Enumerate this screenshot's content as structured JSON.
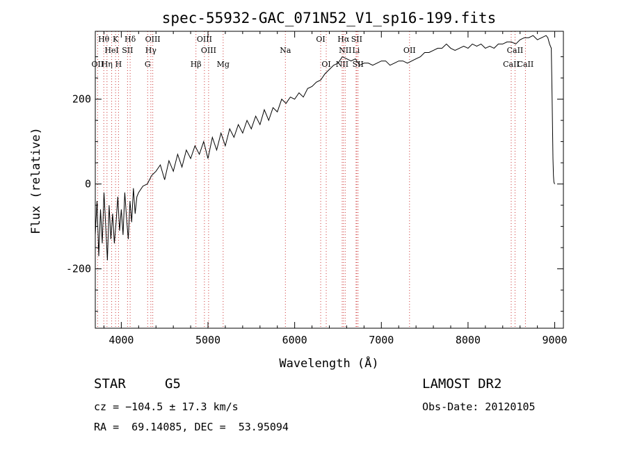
{
  "chart_data": {
    "type": "line",
    "title": "spec-55932-GAC_071N52_V1_sp16-199.fits",
    "xlabel": "Wavelength (Å)",
    "ylabel": "Flux (relative)",
    "xlim": [
      3700,
      9100
    ],
    "ylim": [
      -340,
      360
    ],
    "xticks": [
      4000,
      5000,
      6000,
      7000,
      8000,
      9000
    ],
    "yticks": [
      -200,
      0,
      200
    ],
    "grid": false,
    "line_color": "#000000",
    "marker_color": "#cc3333",
    "series": [
      {
        "x": [
          3700,
          3720,
          3740,
          3760,
          3780,
          3800,
          3820,
          3840,
          3860,
          3880,
          3900,
          3920,
          3940,
          3960,
          3980,
          4000,
          4020,
          4040,
          4060,
          4080,
          4100,
          4120,
          4140,
          4160,
          4180,
          4200,
          4250,
          4300,
          4350,
          4400,
          4450,
          4500,
          4550,
          4600,
          4650,
          4700,
          4750,
          4800,
          4850,
          4900,
          4950,
          5000,
          5050,
          5100,
          5150,
          5200,
          5250,
          5300,
          5350,
          5400,
          5450,
          5500,
          5550,
          5600,
          5650,
          5700,
          5750,
          5800,
          5850,
          5900,
          5950,
          6000,
          6050,
          6100,
          6150,
          6200,
          6250,
          6300,
          6350,
          6400,
          6450,
          6500,
          6550,
          6600,
          6650,
          6700,
          6750,
          6800,
          6850,
          6900,
          6950,
          7000,
          7050,
          7100,
          7150,
          7200,
          7250,
          7300,
          7350,
          7400,
          7450,
          7500,
          7550,
          7600,
          7650,
          7700,
          7750,
          7800,
          7850,
          7900,
          7950,
          8000,
          8050,
          8100,
          8150,
          8200,
          8250,
          8300,
          8350,
          8400,
          8450,
          8500,
          8550,
          8600,
          8650,
          8700,
          8750,
          8800,
          8850,
          8900,
          8920,
          8940,
          8960,
          8970,
          8980,
          8985,
          8990,
          8995,
          9000
        ],
        "y": [
          -120,
          -40,
          -170,
          -60,
          -140,
          -20,
          -100,
          -180,
          -50,
          -130,
          -70,
          -140,
          -90,
          -30,
          -110,
          -60,
          -120,
          -20,
          -80,
          -130,
          -40,
          -90,
          -10,
          -70,
          -30,
          -20,
          -5,
          0,
          20,
          30,
          45,
          10,
          55,
          30,
          70,
          40,
          80,
          60,
          90,
          70,
          100,
          60,
          110,
          80,
          120,
          90,
          130,
          110,
          140,
          120,
          150,
          130,
          160,
          140,
          175,
          150,
          180,
          170,
          200,
          190,
          205,
          200,
          215,
          205,
          225,
          230,
          240,
          245,
          260,
          270,
          280,
          285,
          300,
          295,
          290,
          295,
          280,
          285,
          285,
          280,
          285,
          290,
          290,
          280,
          285,
          290,
          290,
          285,
          290,
          295,
          300,
          310,
          310,
          315,
          320,
          320,
          330,
          320,
          315,
          320,
          325,
          320,
          330,
          325,
          330,
          320,
          325,
          320,
          330,
          330,
          335,
          335,
          330,
          340,
          345,
          345,
          350,
          340,
          345,
          350,
          345,
          330,
          320,
          200,
          60,
          20,
          5,
          2,
          0
        ]
      }
    ],
    "lines": [
      {
        "label": "Hθ",
        "x": 3798
      },
      {
        "label": "K",
        "x": 3934
      },
      {
        "label": "Hδ",
        "x": 4102
      },
      {
        "label": "OIII",
        "x": 4363
      },
      {
        "label": "OIII",
        "x": 4959
      },
      {
        "label": "OI",
        "x": 6300
      },
      {
        "label": "Hα",
        "x": 6563
      },
      {
        "label": "SII",
        "x": 6716
      },
      {
        "label": "HeI",
        "x": 3889
      },
      {
        "label": "SII",
        "x": 4072
      },
      {
        "label": "Hγ",
        "x": 4341
      },
      {
        "label": "OIII",
        "x": 5007
      },
      {
        "label": "Na",
        "x": 5893
      },
      {
        "label": "NII",
        "x": 6583
      },
      {
        "label": "Li",
        "x": 6708
      },
      {
        "label": "OII",
        "x": 7325
      },
      {
        "label": "CaII",
        "x": 8542
      },
      {
        "label": "OII",
        "x": 3727
      },
      {
        "label": "Hη",
        "x": 3835
      },
      {
        "label": "H",
        "x": 3968
      },
      {
        "label": "G",
        "x": 4304
      },
      {
        "label": "Hβ",
        "x": 4861
      },
      {
        "label": "Mg",
        "x": 5175
      },
      {
        "label": "OI",
        "x": 6364
      },
      {
        "label": "NII",
        "x": 6548
      },
      {
        "label": "SII",
        "x": 6731
      },
      {
        "label": "CaII",
        "x": 8498
      },
      {
        "label": "CaII",
        "x": 8662
      }
    ]
  },
  "info": {
    "object_class": "STAR",
    "subclass": "G5",
    "survey": "LAMOST DR2",
    "redshift": "cz = −104.5 ± 17.3 km/s",
    "obs_date": "Obs-Date: 20120105",
    "coords": "RA =  69.14085, DEC =  53.95094"
  }
}
